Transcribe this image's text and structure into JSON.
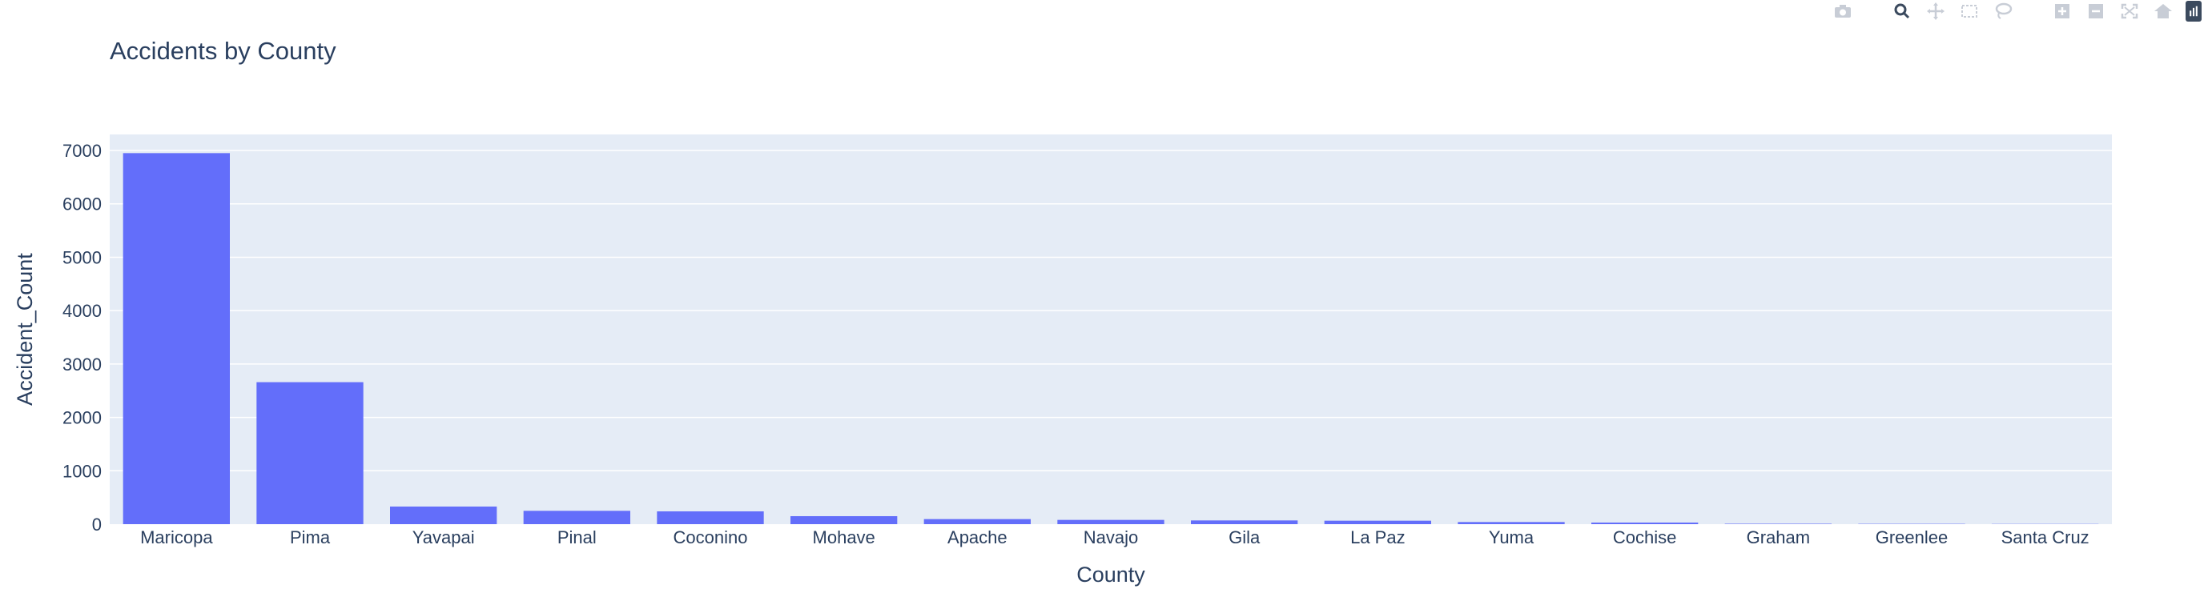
{
  "chart_data": {
    "type": "bar",
    "title": "Accidents by County",
    "xlabel": "County",
    "ylabel": "Accident_Count",
    "categories": [
      "Maricopa",
      "Pima",
      "Yavapai",
      "Pinal",
      "Coconino",
      "Mohave",
      "Apache",
      "Navajo",
      "Gila",
      "La Paz",
      "Yuma",
      "Cochise",
      "Graham",
      "Greenlee",
      "Santa Cruz"
    ],
    "values": [
      6950,
      2660,
      330,
      250,
      240,
      150,
      95,
      80,
      70,
      65,
      40,
      30,
      8,
      6,
      4
    ],
    "ylim": [
      0,
      7300
    ],
    "yticks": [
      0,
      1000,
      2000,
      3000,
      4000,
      5000,
      6000,
      7000
    ],
    "grid": true,
    "colors": {
      "bar": "#636efa",
      "plot_bg": "#e5ecf6",
      "grid": "#ffffff",
      "text": "#2a3f5f"
    }
  },
  "modebar": {
    "buttons": [
      "camera-icon",
      "zoom-icon",
      "pan-icon",
      "box-select-icon",
      "lasso-icon",
      "zoom-in-icon",
      "zoom-out-icon",
      "autoscale-icon",
      "home-icon"
    ]
  }
}
